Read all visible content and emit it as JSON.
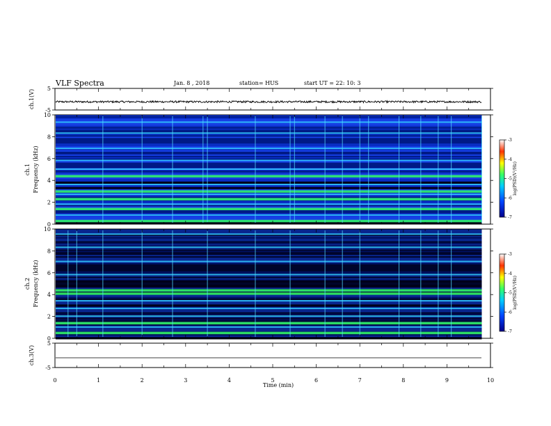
{
  "header": {
    "title": "VLF Spectra",
    "date": "Jan. 8 , 2018",
    "station": "station= HUS",
    "start": "start UT =  22: 10: 3"
  },
  "chart_data": [
    {
      "type": "line",
      "name": "ch1-waveform",
      "ylabel": "ch.1(V)",
      "xlim": [
        0,
        10
      ],
      "ylim": [
        -5,
        5
      ],
      "y_ticks": [
        "5",
        "-5"
      ],
      "data_extent_min": 9.8,
      "baseline": -1.2,
      "noise_amplitude": 0.45
    },
    {
      "type": "heatmap",
      "name": "ch1-spectrogram",
      "ylabel": "ch.1 Frequency (kHz)",
      "xlim": [
        0,
        10
      ],
      "ylim": [
        0,
        10
      ],
      "y_ticks": [
        "0",
        "2",
        "4",
        "6",
        "8",
        "10"
      ],
      "colorbar": {
        "label": "log(PSD)(V²/Hz)",
        "ticks": [
          "-3",
          "-4",
          "-5",
          "-6",
          "-7"
        ],
        "range": [
          -7,
          -3
        ]
      },
      "bands_khz": [
        {
          "f": 0.3,
          "level": "green"
        },
        {
          "f": 0.8,
          "level": "cyan"
        },
        {
          "f": 1.4,
          "level": "green"
        },
        {
          "f": 1.8,
          "level": "cyan"
        },
        {
          "f": 2.3,
          "level": "green"
        },
        {
          "f": 2.7,
          "level": "cyan"
        },
        {
          "f": 3.0,
          "level": "green"
        },
        {
          "f": 3.6,
          "level": "cyan"
        },
        {
          "f": 4.4,
          "level": "green"
        },
        {
          "f": 5.0,
          "level": "cyan"
        },
        {
          "f": 5.8,
          "level": "cyan"
        },
        {
          "f": 6.9,
          "level": "cyan"
        },
        {
          "f": 8.3,
          "level": "cyan"
        },
        {
          "f": 9.3,
          "level": "cyan"
        }
      ],
      "dark_bands_khz": [
        0.1,
        3.3,
        3.8
      ],
      "spike_times_min": [
        1.1,
        2.0,
        2.7,
        3.4,
        3.5,
        4.6,
        5.4,
        5.5,
        6.2,
        6.6,
        7.0,
        7.2,
        7.9,
        8.4,
        8.8,
        9.1,
        9.8
      ]
    },
    {
      "type": "heatmap",
      "name": "ch2-spectrogram",
      "ylabel": "ch.2 Frequency (kHz)",
      "xlim": [
        0,
        10
      ],
      "ylim": [
        0,
        10
      ],
      "y_ticks": [
        "0",
        "2",
        "4",
        "6",
        "8",
        "10"
      ],
      "colorbar": {
        "label": "log(PSD)(V²/Hz)",
        "ticks": [
          "-3",
          "-4",
          "-5",
          "-6",
          "-7"
        ],
        "range": [
          -7,
          -3
        ]
      },
      "bands_khz": [
        {
          "f": 0.5,
          "level": "green"
        },
        {
          "f": 1.0,
          "level": "cyan"
        },
        {
          "f": 1.4,
          "level": "green"
        },
        {
          "f": 2.0,
          "level": "cyan"
        },
        {
          "f": 2.7,
          "level": "cyan"
        },
        {
          "f": 3.4,
          "level": "cyan"
        },
        {
          "f": 4.1,
          "level": "green"
        },
        {
          "f": 4.4,
          "level": "green"
        },
        {
          "f": 5.8,
          "level": "cyan"
        },
        {
          "f": 7.0,
          "level": "cyan"
        },
        {
          "f": 8.3,
          "level": "cyan"
        },
        {
          "f": 9.5,
          "level": "cyan"
        }
      ],
      "dark_bands_khz": [
        0.0,
        3.0,
        4.8,
        5.2
      ],
      "spike_times_min": [
        0.3,
        0.5,
        1.1,
        2.0,
        2.7,
        3.5,
        4.6,
        5.4,
        6.2,
        6.6,
        7.0,
        7.9,
        8.4,
        8.8,
        9.1
      ]
    },
    {
      "type": "line",
      "name": "ch3-waveform",
      "ylabel": "ch.3(V)",
      "xlabel": "Time (min)",
      "xlim": [
        0,
        10
      ],
      "ylim": [
        -5,
        5
      ],
      "y_ticks": [
        "5",
        "-5"
      ],
      "x_ticks": [
        "0",
        "1",
        "2",
        "3",
        "4",
        "5",
        "6",
        "7",
        "8",
        "9",
        "10"
      ],
      "data_extent_min": 9.8,
      "baseline": -1.0,
      "noise_amplitude": 0.0
    }
  ],
  "colors": {
    "background": "#ffffff",
    "spectrum_low": "#000033",
    "spectrum_mid": "#0033ff",
    "spectrum_cyan": "#33ccff",
    "spectrum_green": "#33ff66"
  }
}
